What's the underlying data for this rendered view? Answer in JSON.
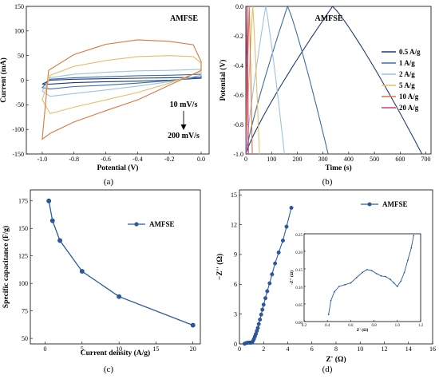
{
  "chart_data": [
    {
      "id": "a",
      "type": "line",
      "caption": "(a)",
      "annotation": "AMFSE",
      "xlabel": "Potential (V)",
      "ylabel": "Current (mA)",
      "xlim": [
        -1.1,
        0.05
      ],
      "ylim": [
        -150,
        150
      ],
      "xticks": [
        "-1.0",
        "-0.8",
        "-0.6",
        "-0.4",
        "-0.2",
        "0.0"
      ],
      "xtick_values": [
        -1.0,
        -0.8,
        -0.6,
        -0.4,
        -0.2,
        0.0
      ],
      "yticks": [
        "-150",
        "-100",
        "-50",
        "0",
        "50",
        "100",
        "150"
      ],
      "ytick_values": [
        -150,
        -100,
        -50,
        0,
        50,
        100,
        150
      ],
      "arrow_top": "10 mV/s",
      "arrow_bottom": "200 mV/s",
      "series": [
        {
          "color": "#1f3b73",
          "upper": [
            [
              -1.0,
              -8
            ],
            [
              -0.95,
              0
            ],
            [
              -0.8,
              2
            ],
            [
              -0.6,
              3
            ],
            [
              -0.4,
              4
            ],
            [
              -0.2,
              5
            ],
            [
              0.0,
              6
            ]
          ],
          "lower": [
            [
              0.0,
              4
            ],
            [
              -0.2,
              0
            ],
            [
              -0.4,
              -2
            ],
            [
              -0.6,
              -3
            ],
            [
              -0.8,
              -5
            ],
            [
              -0.95,
              -8
            ],
            [
              -1.0,
              -8
            ]
          ]
        },
        {
          "color": "#3a6ea5",
          "upper": [
            [
              -1.0,
              -15
            ],
            [
              -0.95,
              2
            ],
            [
              -0.8,
              5
            ],
            [
              -0.6,
              7
            ],
            [
              -0.4,
              9
            ],
            [
              -0.2,
              10
            ],
            [
              0.0,
              12
            ]
          ],
          "lower": [
            [
              0.0,
              6
            ],
            [
              -0.2,
              -1
            ],
            [
              -0.4,
              -6
            ],
            [
              -0.6,
              -10
            ],
            [
              -0.8,
              -13
            ],
            [
              -0.95,
              -18
            ],
            [
              -1.0,
              -15
            ]
          ]
        },
        {
          "color": "#9cc3de",
          "upper": [
            [
              -1.0,
              -22
            ],
            [
              -0.95,
              5
            ],
            [
              -0.8,
              12
            ],
            [
              -0.6,
              16
            ],
            [
              -0.4,
              19
            ],
            [
              -0.2,
              20
            ],
            [
              0.0,
              22
            ]
          ],
          "lower": [
            [
              0.0,
              10
            ],
            [
              -0.2,
              -3
            ],
            [
              -0.4,
              -12
            ],
            [
              -0.6,
              -20
            ],
            [
              -0.8,
              -27
            ],
            [
              -0.95,
              -33
            ],
            [
              -1.0,
              -22
            ]
          ]
        },
        {
          "color": "#e6bd6a",
          "upper": [
            [
              -1.0,
              -40
            ],
            [
              -0.95,
              10
            ],
            [
              -0.8,
              28
            ],
            [
              -0.6,
              40
            ],
            [
              -0.4,
              48
            ],
            [
              -0.2,
              50
            ],
            [
              -0.05,
              48
            ],
            [
              0.0,
              35
            ]
          ],
          "lower": [
            [
              0.0,
              18
            ],
            [
              -0.2,
              -6
            ],
            [
              -0.4,
              -25
            ],
            [
              -0.6,
              -40
            ],
            [
              -0.8,
              -55
            ],
            [
              -0.95,
              -68
            ],
            [
              -1.0,
              -40
            ]
          ]
        },
        {
          "color": "#d9773f",
          "upper": [
            [
              -1.0,
              -120
            ],
            [
              -0.96,
              20
            ],
            [
              -0.8,
              52
            ],
            [
              -0.6,
              73
            ],
            [
              -0.4,
              82
            ],
            [
              -0.2,
              79
            ],
            [
              -0.05,
              72
            ],
            [
              0.0,
              38
            ]
          ],
          "lower": [
            [
              0.0,
              20
            ],
            [
              -0.2,
              -10
            ],
            [
              -0.4,
              -40
            ],
            [
              -0.6,
              -62
            ],
            [
              -0.8,
              -85
            ],
            [
              -0.95,
              -108
            ],
            [
              -1.0,
              -120
            ]
          ]
        }
      ]
    },
    {
      "id": "b",
      "type": "line",
      "caption": "(b)",
      "annotation": "AMFSE",
      "xlabel": "Time (s)",
      "ylabel": "Potential (V)",
      "xlim": [
        0,
        720
      ],
      "ylim": [
        -1.0,
        0.0
      ],
      "xticks": [
        "0",
        "100",
        "200",
        "300",
        "400",
        "500",
        "600",
        "700"
      ],
      "xtick_values": [
        0,
        100,
        200,
        300,
        400,
        500,
        600,
        700
      ],
      "yticks": [
        "-1.0",
        "-0.8",
        "-0.6",
        "-0.4",
        "-0.2",
        "0.0"
      ],
      "ytick_values": [
        -1.0,
        -0.8,
        -0.6,
        -0.4,
        -0.2,
        0.0
      ],
      "series": [
        {
          "name": "0.5 A/g",
          "color": "#1f3b73",
          "t_charge": 337,
          "t_end": 685
        },
        {
          "name": "1 A/g",
          "color": "#3a6ea5",
          "t_charge": 162,
          "t_end": 320
        },
        {
          "name": "2 A/g",
          "color": "#9cc3de",
          "t_charge": 77,
          "t_end": 150
        },
        {
          "name": "5 A/g",
          "color": "#e6bd6a",
          "t_charge": 27,
          "t_end": 53
        },
        {
          "name": "10 A/g",
          "color": "#d9773f",
          "t_charge": 13,
          "t_end": 25
        },
        {
          "name": "20 A/g",
          "color": "#c0407a",
          "t_charge": 5,
          "t_end": 10
        }
      ]
    },
    {
      "id": "c",
      "type": "line",
      "caption": "(c)",
      "xlabel": "Current density (A/g)",
      "ylabel": "Specific capacitance (F/g)",
      "xlim": [
        -2,
        21
      ],
      "ylim": [
        45,
        185
      ],
      "xticks": [
        "0",
        "5",
        "10",
        "15",
        "20"
      ],
      "xtick_values": [
        0,
        5,
        10,
        15,
        20
      ],
      "yticks": [
        "50",
        "75",
        "100",
        "125",
        "150",
        "175"
      ],
      "ytick_values": [
        50,
        75,
        100,
        125,
        150,
        175
      ],
      "series": [
        {
          "name": "AMFSE",
          "color": "#2c5aa0",
          "x": [
            0.5,
            1,
            2,
            5,
            10,
            20
          ],
          "y": [
            175,
            157,
            139,
            111,
            88,
            62
          ]
        }
      ]
    },
    {
      "id": "d",
      "type": "scatter",
      "caption": "(d)",
      "xlabel": "Z' (Ω)",
      "ylabel": "−Z'' (Ω)",
      "xlim": [
        0,
        16
      ],
      "ylim": [
        0,
        15.5
      ],
      "xticks": [
        "0",
        "2",
        "4",
        "6",
        "8",
        "10",
        "12",
        "14",
        "16"
      ],
      "xtick_values": [
        0,
        2,
        4,
        6,
        8,
        10,
        12,
        14,
        16
      ],
      "yticks": [
        "0",
        "3",
        "6",
        "9",
        "12",
        "15"
      ],
      "ytick_values": [
        0,
        3,
        6,
        9,
        12,
        15
      ],
      "series": [
        {
          "name": "AMFSE",
          "color": "#2c5aa0",
          "x": [
            0.42,
            0.55,
            0.7,
            0.85,
            0.95,
            1.05,
            1.12,
            1.2,
            1.28,
            1.36,
            1.44,
            1.52,
            1.6,
            1.7,
            1.8,
            1.9,
            2.0,
            2.15,
            2.3,
            2.5,
            2.7,
            2.95,
            3.25,
            3.6,
            3.9,
            4.3
          ],
          "y": [
            0.02,
            0.08,
            0.12,
            0.13,
            0.12,
            0.15,
            0.3,
            0.5,
            0.75,
            1.0,
            1.3,
            1.6,
            2.0,
            2.45,
            2.95,
            3.45,
            3.95,
            4.6,
            5.3,
            6.1,
            7.0,
            8.1,
            9.2,
            10.4,
            11.8,
            13.7
          ]
        }
      ],
      "inset": {
        "xlabel": "Z' (Ω)",
        "ylabel": "-Z'' (Ω)",
        "xlim": [
          0.2,
          1.2
        ],
        "ylim": [
          0.0,
          0.25
        ],
        "xticks": [
          "0.2",
          "0.4",
          "0.6",
          "0.8",
          "1.0",
          "1.2"
        ],
        "xtick_values": [
          0.2,
          0.4,
          0.6,
          0.8,
          1.0,
          1.2
        ],
        "yticks": [
          "0.00",
          "0.05",
          "0.10",
          "0.15",
          "0.20",
          "0.25"
        ],
        "ytick_values": [
          0.0,
          0.05,
          0.1,
          0.15,
          0.2,
          0.25
        ],
        "x": [
          0.41,
          0.43,
          0.46,
          0.5,
          0.55,
          0.6,
          0.65,
          0.7,
          0.74,
          0.78,
          0.82,
          0.86,
          0.9,
          0.94,
          0.97,
          1.0,
          1.03,
          1.06,
          1.09,
          1.12,
          1.14
        ],
        "y": [
          0.02,
          0.06,
          0.085,
          0.1,
          0.105,
          0.11,
          0.125,
          0.14,
          0.148,
          0.145,
          0.137,
          0.13,
          0.128,
          0.12,
          0.11,
          0.1,
          0.115,
          0.14,
          0.175,
          0.21,
          0.245
        ]
      }
    }
  ]
}
